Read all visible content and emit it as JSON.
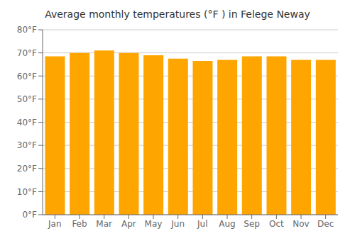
{
  "chart_data": {
    "type": "bar",
    "title": "Average monthly temperatures (°F ) in Felege Neway",
    "categories": [
      "Jan",
      "Feb",
      "Mar",
      "Apr",
      "May",
      "Jun",
      "Jul",
      "Aug",
      "Sep",
      "Oct",
      "Nov",
      "Dec"
    ],
    "values": [
      68.5,
      70.0,
      71.0,
      70.0,
      69.0,
      67.5,
      66.5,
      67.0,
      68.5,
      68.5,
      67.0,
      67.0
    ],
    "color": "#FFA500",
    "ylim": [
      0,
      80
    ],
    "yticks": [
      {
        "value": 0,
        "label": "0°F"
      },
      {
        "value": 10,
        "label": "10°F"
      },
      {
        "value": 20,
        "label": "20°F"
      },
      {
        "value": 30,
        "label": "30°F"
      },
      {
        "value": 40,
        "label": "40°F"
      },
      {
        "value": 50,
        "label": "50°F"
      },
      {
        "value": 60,
        "label": "60°F"
      },
      {
        "value": 70,
        "label": "70°F"
      },
      {
        "value": 80,
        "label": "80°F"
      }
    ],
    "grid": true
  }
}
